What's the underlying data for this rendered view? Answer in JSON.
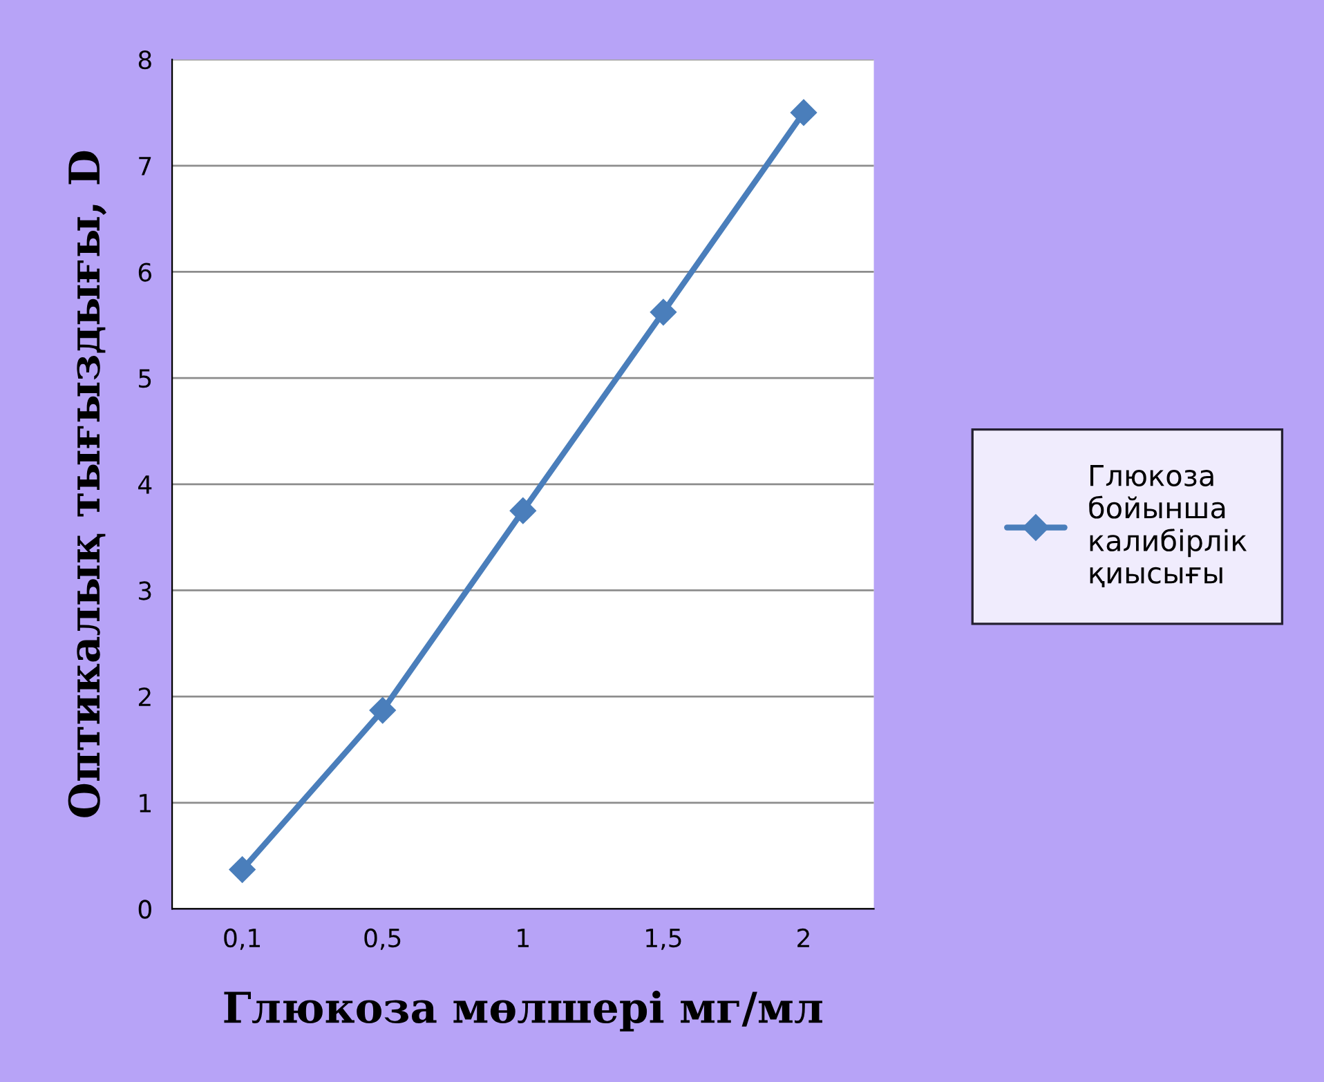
{
  "chart_data": {
    "type": "line",
    "xlabel": "Глюкоза мөлшері мг/мл",
    "ylabel": "Оптикалық тығыздығы, D",
    "categories": [
      "0,1",
      "0,5",
      "1",
      "1,5",
      "2"
    ],
    "series": [
      {
        "name": "Глюкоза бойынша калибірлік қиысығы",
        "color": "#4a7ebb",
        "values": [
          0.37,
          1.87,
          3.75,
          5.62,
          7.5
        ]
      }
    ],
    "ylim": [
      0,
      8
    ],
    "yticks": [
      0,
      1,
      2,
      3,
      4,
      5,
      6,
      7,
      8
    ],
    "grid": "y",
    "legend": "right",
    "marker": "diamond",
    "line_style": "solid"
  }
}
